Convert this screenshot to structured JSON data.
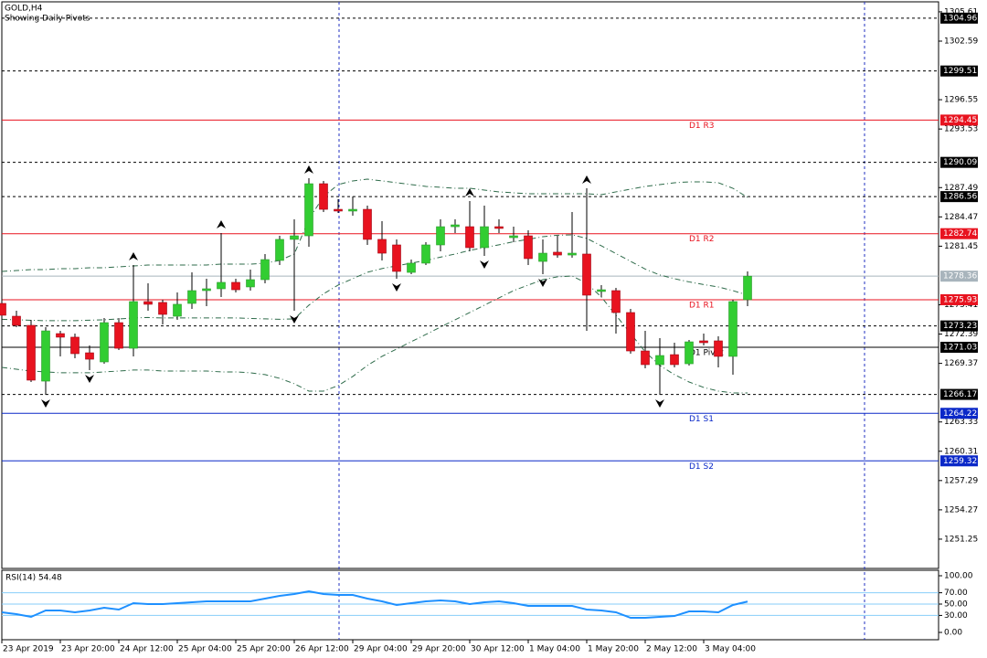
{
  "chart_data": [
    {
      "type": "candlestick",
      "title": "GOLD,H4",
      "subtitle": "Showing Daily Pivots",
      "categories": [
        "23 Apr 2019",
        null,
        null,
        null,
        "23 Apr 20:00",
        null,
        null,
        null,
        "24 Apr 12:00",
        null,
        null,
        null,
        "25 Apr 04:00",
        null,
        null,
        null,
        "25 Apr 20:00",
        null,
        null,
        null,
        "26 Apr 12:00",
        null,
        null,
        null,
        "29 Apr 04:00",
        null,
        null,
        null,
        "29 Apr 20:00",
        null,
        null,
        null,
        "30 Apr 12:00",
        null,
        null,
        null,
        "1 May 04:00",
        null,
        null,
        null,
        "1 May 20:00",
        null,
        null,
        null,
        "2 May 12:00",
        null,
        null,
        null,
        "3 May 04:00",
        null,
        null,
        null
      ],
      "open": [
        1275.55,
        1274.23,
        1273.29,
        1267.54,
        1272.44,
        1272.07,
        1270.46,
        1269.52,
        1273.57,
        1270.93,
        1275.74,
        1275.65,
        1274.23,
        1275.55,
        1276.87,
        1277.06,
        1277.72,
        1277.25,
        1278.0,
        1279.98,
        1282.15,
        1282.52,
        1287.89,
        1285.25,
        1285.07,
        1285.25,
        1282.15,
        1281.58,
        1278.75,
        1279.7,
        1281.58,
        1283.46,
        1283.46,
        1281.3,
        1283.46,
        1282.33,
        1282.52,
        1279.88,
        1280.83,
        1280.54,
        1280.64,
        1276.78,
        1276.87,
        1274.61,
        1270.65,
        1269.24,
        1270.27,
        1269.33,
        1271.69,
        1271.69,
        1270.09,
        1275.93
      ],
      "high": [
        1276.21,
        1274.8,
        1273.85,
        1273.1,
        1272.72,
        1272.44,
        1271.22,
        1274.04,
        1274.04,
        1279.51,
        1277.62,
        1275.93,
        1276.68,
        1278.75,
        1278.09,
        1282.8,
        1278.09,
        1279.04,
        1280.64,
        1282.52,
        1284.22,
        1288.46,
        1288.17,
        1286.29,
        1286.57,
        1285.63,
        1284.03,
        1282.15,
        1280.07,
        1281.86,
        1284.22,
        1284.22,
        1286.1,
        1285.63,
        1284.22,
        1283.46,
        1283.09,
        1282.15,
        1282.52,
        1284.97,
        1287.42,
        1277.43,
        1277.15,
        1274.99,
        1272.72,
        1271.97,
        1271.5,
        1271.78,
        1272.44,
        1272.16,
        1275.93,
        1278.85
      ],
      "low": [
        1273.85,
        1273.1,
        1267.45,
        1266.13,
        1270.09,
        1269.9,
        1268.67,
        1269.33,
        1270.75,
        1270.09,
        1274.8,
        1273.38,
        1273.85,
        1274.99,
        1275.27,
        1276.21,
        1276.68,
        1276.87,
        1277.62,
        1279.51,
        1274.8,
        1281.39,
        1284.97,
        1284.88,
        1284.59,
        1281.58,
        1279.98,
        1278.09,
        1278.57,
        1279.51,
        1280.92,
        1282.8,
        1280.92,
        1280.45,
        1282.8,
        1281.86,
        1279.51,
        1278.57,
        1280.26,
        1280.26,
        1272.72,
        1276.21,
        1272.44,
        1270.37,
        1268.86,
        1266.13,
        1268.96,
        1269.14,
        1271.22,
        1268.96,
        1268.2,
        1275.27
      ],
      "close": [
        1274.33,
        1273.29,
        1267.64,
        1272.72,
        1272.07,
        1270.37,
        1269.8,
        1273.57,
        1270.93,
        1275.74,
        1275.46,
        1274.42,
        1275.46,
        1276.87,
        1277.06,
        1277.72,
        1276.96,
        1278.0,
        1280.07,
        1282.15,
        1282.52,
        1287.89,
        1285.25,
        1285.07,
        1285.25,
        1282.15,
        1280.73,
        1278.85,
        1279.7,
        1281.58,
        1283.46,
        1283.65,
        1281.3,
        1283.46,
        1283.28,
        1282.52,
        1280.17,
        1280.73,
        1280.54,
        1280.73,
        1276.4,
        1276.96,
        1274.61,
        1270.65,
        1269.24,
        1270.18,
        1269.24,
        1271.59,
        1271.5,
        1270.09,
        1275.74,
        1278.36
      ],
      "up_color": "#32cd32",
      "down_color": "#e8131f",
      "bands": {
        "color": "#2e6b4a",
        "upper": [
          1278.85,
          1278.94,
          1279.04,
          1279.04,
          1279.13,
          1279.13,
          1279.23,
          1279.23,
          1279.32,
          1279.41,
          1279.51,
          1279.51,
          1279.51,
          1279.51,
          1279.51,
          1279.6,
          1279.6,
          1279.6,
          1279.7,
          1279.98,
          1280.64,
          1284.22,
          1286.57,
          1287.8,
          1288.18,
          1288.36,
          1288.18,
          1287.99,
          1287.8,
          1287.61,
          1287.52,
          1287.42,
          1287.42,
          1287.23,
          1287.05,
          1286.95,
          1286.86,
          1286.86,
          1286.86,
          1286.86,
          1286.86,
          1286.76,
          1287.05,
          1287.33,
          1287.61,
          1287.8,
          1287.99,
          1288.08,
          1288.08,
          1287.99,
          1287.42,
          1286.48
        ],
        "middle": [
          1273.91,
          1273.86,
          1273.81,
          1273.77,
          1273.77,
          1273.77,
          1273.82,
          1273.86,
          1273.95,
          1274.05,
          1274.1,
          1274.05,
          1274.05,
          1274.05,
          1274.05,
          1274.05,
          1274.05,
          1274.0,
          1273.96,
          1273.91,
          1273.96,
          1275.37,
          1276.54,
          1277.44,
          1278.1,
          1278.76,
          1279.14,
          1279.42,
          1279.7,
          1279.98,
          1280.32,
          1280.64,
          1281.02,
          1281.3,
          1281.59,
          1281.91,
          1282.15,
          1282.43,
          1282.58,
          1282.62,
          1282.25,
          1281.49,
          1280.69,
          1279.89,
          1279.09,
          1278.48,
          1278.1,
          1277.77,
          1277.49,
          1277.25,
          1276.87,
          1276.4
        ],
        "lower": [
          1268.96,
          1268.77,
          1268.58,
          1268.49,
          1268.4,
          1268.4,
          1268.4,
          1268.49,
          1268.58,
          1268.68,
          1268.68,
          1268.58,
          1268.58,
          1268.58,
          1268.58,
          1268.49,
          1268.49,
          1268.4,
          1268.21,
          1267.83,
          1267.27,
          1266.51,
          1266.51,
          1267.08,
          1268.02,
          1269.15,
          1270.09,
          1270.85,
          1271.6,
          1272.35,
          1273.11,
          1273.86,
          1274.61,
          1275.37,
          1276.12,
          1276.87,
          1277.44,
          1278.0,
          1278.29,
          1278.38,
          1277.63,
          1276.21,
          1274.33,
          1272.45,
          1270.56,
          1269.15,
          1268.21,
          1267.45,
          1266.89,
          1266.51,
          1266.32,
          1266.32
        ]
      },
      "fractals": {
        "color": "#000000",
        "up": [
          null,
          null,
          null,
          null,
          null,
          null,
          null,
          null,
          null,
          1279.51,
          null,
          null,
          null,
          null,
          null,
          1282.8,
          null,
          null,
          null,
          null,
          null,
          1288.46,
          null,
          null,
          null,
          null,
          null,
          null,
          null,
          null,
          null,
          null,
          1286.1,
          null,
          null,
          null,
          null,
          null,
          null,
          null,
          1287.42,
          null,
          null,
          null,
          null,
          null,
          null,
          null,
          null,
          null,
          null,
          null
        ],
        "down": [
          null,
          null,
          null,
          1266.13,
          null,
          null,
          1268.67,
          null,
          null,
          null,
          null,
          null,
          null,
          null,
          null,
          null,
          null,
          null,
          null,
          null,
          1274.8,
          null,
          null,
          null,
          null,
          null,
          null,
          1278.09,
          null,
          null,
          null,
          null,
          null,
          1280.45,
          null,
          null,
          null,
          1278.57,
          null,
          null,
          null,
          null,
          null,
          null,
          null,
          1266.13,
          null,
          null,
          null,
          null,
          null,
          null
        ]
      },
      "levels": [
        {
          "value": 1304.96,
          "color": "#000000",
          "style": "dashed"
        },
        {
          "value": 1299.51,
          "color": "#000000",
          "style": "dashed"
        },
        {
          "value": 1294.45,
          "color": "#e8131f",
          "style": "solid",
          "label": "D1  R3"
        },
        {
          "value": 1290.09,
          "color": "#000000",
          "style": "dashed"
        },
        {
          "value": 1286.56,
          "color": "#000000",
          "style": "dashed"
        },
        {
          "value": 1282.74,
          "color": "#e8131f",
          "style": "solid",
          "label": "D1  R2"
        },
        {
          "value": 1278.36,
          "color": "#a8b4bc",
          "style": "solid"
        },
        {
          "value": 1275.93,
          "color": "#e8131f",
          "style": "solid",
          "label": "D1  R1"
        },
        {
          "value": 1273.23,
          "color": "#000000",
          "style": "dashed"
        },
        {
          "value": 1271.03,
          "color": "#000000",
          "style": "solid",
          "label": "D1  Pivot"
        },
        {
          "value": 1266.17,
          "color": "#000000",
          "style": "dashed"
        },
        {
          "value": 1264.22,
          "color": "#0a28c8",
          "style": "solid",
          "label": "D1  S1"
        },
        {
          "value": 1259.32,
          "color": "#0a28c8",
          "style": "solid",
          "label": "D1  S2"
        }
      ],
      "ylim": [
        1248.23,
        1306.64
      ],
      "yticks": [
        1305.61,
        1302.59,
        1296.55,
        1293.53,
        1287.49,
        1284.47,
        1281.45,
        1275.41,
        1272.39,
        1269.37,
        1263.33,
        1260.31,
        1257.29,
        1254.27,
        1251.25
      ]
    },
    {
      "type": "line",
      "title": "RSI(14) 54.48",
      "series": [
        {
          "color": "#1e90ff",
          "values": [
            35.5,
            32.3,
            27.4,
            38.7,
            38.7,
            35.5,
            38.7,
            43.5,
            40.3,
            51.6,
            50.0,
            50.0,
            51.6,
            53.2,
            54.8,
            54.8,
            54.8,
            54.8,
            59.7,
            64.5,
            67.7,
            72.6,
            67.7,
            66.1,
            66.1,
            59.7,
            54.8,
            48.4,
            51.6,
            54.8,
            56.5,
            54.8,
            50.0,
            53.2,
            54.8,
            51.6,
            46.8,
            46.8,
            46.8,
            46.8,
            40.3,
            38.7,
            35.5,
            25.8,
            25.8,
            27.4,
            29.0,
            37.1,
            37.1,
            35.5,
            48.4,
            54.48
          ]
        }
      ],
      "levels": [
        70,
        50,
        30
      ],
      "level_color": "#87cefa",
      "ylim": [
        -12.9,
        109.7
      ],
      "yticks": [
        {
          "value": 100,
          "label": "100.00"
        },
        {
          "value": 70,
          "label": "70.00"
        },
        {
          "value": 50,
          "label": "50.00"
        },
        {
          "value": 30,
          "label": "30.00"
        },
        {
          "value": 0,
          "label": "0.00"
        }
      ]
    }
  ]
}
